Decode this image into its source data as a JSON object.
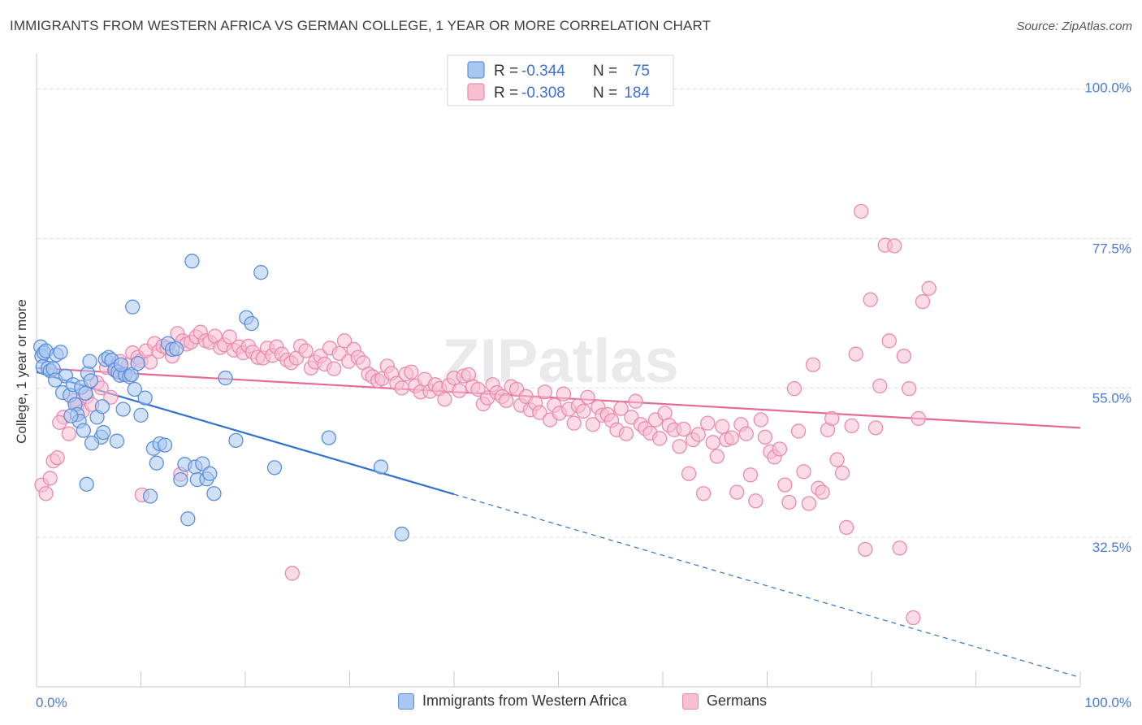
{
  "header": {
    "title": "IMMIGRANTS FROM WESTERN AFRICA VS GERMAN COLLEGE, 1 YEAR OR MORE CORRELATION CHART",
    "source": "Source: ZipAtlas.com"
  },
  "watermark": "ZIPatlas",
  "legend": {
    "r_label": "R =",
    "n_label": "N =",
    "rows": [
      {
        "r": "-0.344",
        "n": "75"
      },
      {
        "r": "-0.308",
        "n": "184"
      }
    ]
  },
  "bottom_legend": [
    "Immigrants from Western Africa",
    "Germans"
  ],
  "chart_data": {
    "type": "scatter",
    "ylabel": "College, 1 year or more",
    "x_tick_labels": [
      "0.0%",
      "100.0%"
    ],
    "y_tick_labels": [
      "100.0%",
      "77.5%",
      "55.0%",
      "32.5%"
    ],
    "y_ticks": [
      100.0,
      77.5,
      55.0,
      32.5
    ],
    "xlim": [
      0,
      100
    ],
    "ylim": [
      10,
      104
    ],
    "grid": true,
    "legend_position": "top-center",
    "colors": {
      "blue_fill": "#a9c6f0",
      "blue_stroke": "#5b8fdc",
      "blue_line": "#2f72d2",
      "pink_fill": "#f7bfd2",
      "pink_stroke": "#ea8aad",
      "pink_line": "#e66a98"
    },
    "series": [
      {
        "name": "Immigrants from Western Africa",
        "color": "blue",
        "trend": {
          "x0": 0,
          "y0": 57.4,
          "x1": 40,
          "y1": 39.0,
          "dash_to_x": 100,
          "dash_to_y": 11.4
        },
        "points": [
          [
            0.4,
            61.2
          ],
          [
            0.5,
            59.8
          ],
          [
            0.7,
            60.3
          ],
          [
            0.9,
            60.6
          ],
          [
            0.6,
            58.2
          ],
          [
            1.1,
            58.0
          ],
          [
            1.3,
            57.6
          ],
          [
            1.6,
            57.9
          ],
          [
            1.9,
            60.0
          ],
          [
            2.3,
            60.4
          ],
          [
            1.8,
            56.2
          ],
          [
            2.5,
            54.3
          ],
          [
            2.8,
            56.8
          ],
          [
            3.2,
            53.9
          ],
          [
            3.5,
            55.5
          ],
          [
            3.7,
            52.5
          ],
          [
            3.9,
            51.0
          ],
          [
            4.1,
            50.0
          ],
          [
            3.3,
            50.8
          ],
          [
            4.5,
            48.6
          ],
          [
            4.3,
            55.1
          ],
          [
            4.7,
            54.2
          ],
          [
            4.9,
            57.2
          ],
          [
            5.2,
            56.1
          ],
          [
            5.1,
            59.0
          ],
          [
            5.8,
            50.6
          ],
          [
            6.2,
            47.6
          ],
          [
            6.4,
            48.3
          ],
          [
            6.6,
            59.3
          ],
          [
            6.9,
            59.6
          ],
          [
            7.2,
            59.2
          ],
          [
            7.5,
            57.7
          ],
          [
            7.8,
            57.4
          ],
          [
            8.0,
            56.9
          ],
          [
            8.3,
            51.8
          ],
          [
            8.5,
            57.0
          ],
          [
            8.9,
            56.7
          ],
          [
            9.1,
            57.0
          ],
          [
            9.4,
            54.8
          ],
          [
            9.7,
            58.7
          ],
          [
            10.0,
            50.9
          ],
          [
            10.4,
            53.5
          ],
          [
            10.9,
            38.7
          ],
          [
            11.2,
            45.9
          ],
          [
            11.5,
            43.7
          ],
          [
            11.8,
            46.6
          ],
          [
            12.3,
            46.4
          ],
          [
            12.6,
            61.7
          ],
          [
            13.0,
            60.8
          ],
          [
            13.4,
            60.9
          ],
          [
            13.8,
            41.2
          ],
          [
            14.2,
            43.5
          ],
          [
            14.5,
            35.3
          ],
          [
            14.9,
            74.1
          ],
          [
            15.2,
            43.1
          ],
          [
            15.4,
            41.2
          ],
          [
            15.9,
            43.6
          ],
          [
            16.3,
            41.3
          ],
          [
            16.6,
            42.1
          ],
          [
            17.0,
            39.1
          ],
          [
            18.1,
            56.5
          ],
          [
            19.1,
            47.1
          ],
          [
            20.1,
            65.6
          ],
          [
            20.6,
            64.7
          ],
          [
            21.5,
            72.4
          ],
          [
            22.8,
            43.0
          ],
          [
            28.0,
            47.5
          ],
          [
            33.0,
            43.1
          ],
          [
            35.0,
            33.0
          ],
          [
            4.8,
            40.5
          ],
          [
            5.3,
            46.7
          ],
          [
            6.3,
            52.2
          ],
          [
            7.7,
            47.0
          ],
          [
            9.2,
            67.2
          ],
          [
            8.1,
            58.5
          ]
        ]
      },
      {
        "name": "Germans",
        "color": "pink",
        "trend": {
          "x0": 0,
          "y0": 58.0,
          "x1": 100,
          "y1": 49.0
        },
        "points": [
          [
            0.5,
            40.4
          ],
          [
            0.9,
            39.1
          ],
          [
            1.3,
            41.4
          ],
          [
            1.6,
            44.0
          ],
          [
            2.0,
            44.5
          ],
          [
            2.6,
            50.6
          ],
          [
            3.1,
            48.1
          ],
          [
            3.6,
            53.1
          ],
          [
            3.9,
            52.5
          ],
          [
            4.4,
            51.5
          ],
          [
            4.8,
            53.7
          ],
          [
            5.3,
            52.5
          ],
          [
            5.8,
            55.8
          ],
          [
            6.2,
            55.0
          ],
          [
            6.7,
            58.1
          ],
          [
            7.1,
            53.6
          ],
          [
            7.6,
            57.6
          ],
          [
            8.0,
            59.0
          ],
          [
            8.4,
            57.0
          ],
          [
            8.8,
            58.5
          ],
          [
            9.2,
            60.3
          ],
          [
            9.7,
            59.6
          ],
          [
            10.0,
            59.1
          ],
          [
            10.5,
            60.6
          ],
          [
            10.9,
            58.9
          ],
          [
            11.3,
            61.7
          ],
          [
            11.7,
            60.5
          ],
          [
            12.1,
            61.3
          ],
          [
            12.5,
            61.0
          ],
          [
            13.0,
            59.8
          ],
          [
            13.5,
            63.2
          ],
          [
            14.0,
            62.1
          ],
          [
            14.4,
            61.6
          ],
          [
            14.8,
            61.9
          ],
          [
            15.3,
            62.7
          ],
          [
            15.7,
            63.4
          ],
          [
            16.2,
            62.1
          ],
          [
            16.6,
            61.9
          ],
          [
            17.1,
            62.8
          ],
          [
            17.6,
            61.1
          ],
          [
            18.0,
            61.5
          ],
          [
            18.5,
            62.7
          ],
          [
            18.9,
            60.7
          ],
          [
            19.4,
            61.2
          ],
          [
            19.8,
            60.3
          ],
          [
            20.3,
            61.3
          ],
          [
            20.7,
            60.4
          ],
          [
            21.2,
            59.6
          ],
          [
            21.7,
            59.5
          ],
          [
            22.1,
            61.0
          ],
          [
            22.6,
            59.9
          ],
          [
            23.0,
            61.2
          ],
          [
            23.5,
            60.1
          ],
          [
            24.0,
            59.2
          ],
          [
            24.4,
            58.8
          ],
          [
            24.9,
            59.5
          ],
          [
            25.3,
            61.3
          ],
          [
            25.8,
            60.6
          ],
          [
            26.3,
            58.0
          ],
          [
            26.7,
            58.9
          ],
          [
            27.2,
            59.8
          ],
          [
            27.6,
            58.6
          ],
          [
            28.1,
            61.0
          ],
          [
            28.5,
            57.9
          ],
          [
            29.0,
            60.2
          ],
          [
            29.5,
            62.1
          ],
          [
            29.9,
            59.0
          ],
          [
            30.4,
            60.8
          ],
          [
            30.8,
            59.6
          ],
          [
            31.3,
            58.8
          ],
          [
            31.8,
            57.1
          ],
          [
            32.2,
            56.7
          ],
          [
            32.7,
            56.1
          ],
          [
            33.1,
            56.4
          ],
          [
            33.6,
            58.3
          ],
          [
            34.0,
            57.2
          ],
          [
            34.5,
            55.7
          ],
          [
            35.0,
            55.0
          ],
          [
            35.4,
            57.1
          ],
          [
            35.9,
            57.4
          ],
          [
            36.3,
            55.3
          ],
          [
            36.8,
            54.4
          ],
          [
            37.2,
            56.3
          ],
          [
            37.7,
            54.5
          ],
          [
            38.2,
            55.5
          ],
          [
            38.6,
            54.9
          ],
          [
            39.1,
            53.3
          ],
          [
            39.5,
            55.4
          ],
          [
            40.0,
            56.5
          ],
          [
            40.5,
            54.6
          ],
          [
            40.9,
            56.8
          ],
          [
            41.4,
            57.0
          ],
          [
            41.8,
            55.2
          ],
          [
            42.3,
            54.8
          ],
          [
            42.8,
            52.6
          ],
          [
            43.2,
            53.5
          ],
          [
            43.7,
            55.5
          ],
          [
            44.1,
            54.3
          ],
          [
            44.6,
            53.7
          ],
          [
            45.0,
            53.1
          ],
          [
            45.5,
            55.2
          ],
          [
            46.0,
            54.8
          ],
          [
            46.4,
            52.4
          ],
          [
            46.9,
            53.7
          ],
          [
            47.3,
            51.7
          ],
          [
            47.8,
            52.7
          ],
          [
            48.2,
            51.3
          ],
          [
            48.7,
            54.4
          ],
          [
            49.2,
            50.2
          ],
          [
            49.6,
            52.4
          ],
          [
            50.1,
            51.2
          ],
          [
            50.5,
            54.1
          ],
          [
            51.0,
            51.8
          ],
          [
            51.5,
            49.7
          ],
          [
            51.9,
            52.3
          ],
          [
            52.4,
            51.5
          ],
          [
            52.8,
            53.6
          ],
          [
            53.3,
            49.5
          ],
          [
            53.8,
            52.1
          ],
          [
            54.2,
            50.9
          ],
          [
            54.7,
            51.0
          ],
          [
            55.1,
            50.1
          ],
          [
            55.6,
            48.7
          ],
          [
            56.0,
            51.9
          ],
          [
            56.5,
            48.1
          ],
          [
            57.0,
            50.6
          ],
          [
            57.4,
            53.0
          ],
          [
            57.9,
            49.5
          ],
          [
            58.3,
            48.9
          ],
          [
            58.8,
            48.2
          ],
          [
            59.3,
            50.2
          ],
          [
            59.7,
            47.4
          ],
          [
            60.2,
            51.2
          ],
          [
            60.6,
            49.4
          ],
          [
            61.1,
            48.7
          ],
          [
            61.6,
            46.2
          ],
          [
            62.0,
            48.8
          ],
          [
            62.5,
            42.1
          ],
          [
            62.9,
            47.2
          ],
          [
            63.4,
            48.0
          ],
          [
            63.9,
            39.1
          ],
          [
            64.3,
            49.7
          ],
          [
            64.8,
            46.8
          ],
          [
            65.2,
            44.7
          ],
          [
            65.7,
            49.2
          ],
          [
            66.1,
            47.2
          ],
          [
            66.6,
            47.5
          ],
          [
            67.1,
            39.3
          ],
          [
            67.5,
            49.5
          ],
          [
            68.0,
            48.1
          ],
          [
            68.4,
            41.9
          ],
          [
            68.9,
            38.0
          ],
          [
            69.4,
            50.2
          ],
          [
            69.8,
            47.6
          ],
          [
            70.3,
            45.4
          ],
          [
            70.7,
            44.6
          ],
          [
            71.2,
            45.8
          ],
          [
            71.7,
            40.4
          ],
          [
            72.1,
            37.8
          ],
          [
            72.6,
            54.9
          ],
          [
            73.0,
            48.5
          ],
          [
            73.5,
            42.4
          ],
          [
            74.0,
            37.6
          ],
          [
            74.4,
            58.5
          ],
          [
            74.9,
            39.9
          ],
          [
            75.3,
            39.3
          ],
          [
            75.8,
            48.7
          ],
          [
            76.2,
            50.4
          ],
          [
            76.7,
            44.2
          ],
          [
            77.2,
            42.2
          ],
          [
            77.6,
            34.0
          ],
          [
            78.1,
            49.3
          ],
          [
            78.5,
            60.1
          ],
          [
            79.0,
            81.6
          ],
          [
            79.4,
            30.7
          ],
          [
            79.9,
            68.3
          ],
          [
            80.4,
            49.0
          ],
          [
            80.8,
            55.3
          ],
          [
            81.3,
            76.5
          ],
          [
            81.7,
            62.1
          ],
          [
            82.2,
            76.4
          ],
          [
            82.7,
            30.9
          ],
          [
            83.1,
            59.8
          ],
          [
            83.6,
            54.9
          ],
          [
            84.0,
            20.4
          ],
          [
            84.5,
            50.4
          ],
          [
            84.9,
            68.0
          ],
          [
            85.5,
            70.0
          ],
          [
            24.5,
            27.1
          ],
          [
            13.8,
            42.0
          ],
          [
            10.1,
            38.9
          ],
          [
            2.2,
            49.8
          ]
        ]
      }
    ]
  }
}
